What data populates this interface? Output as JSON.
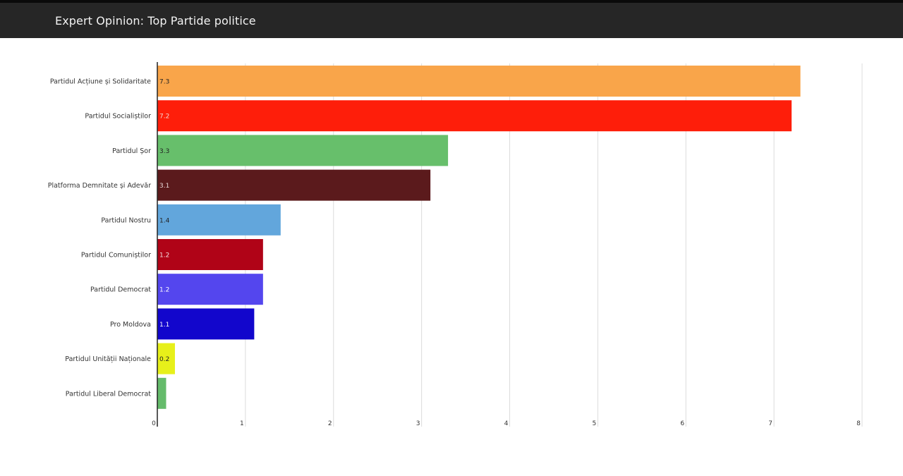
{
  "header": {
    "title": "Expert Opinion: Top Partide politice"
  },
  "chart_data": {
    "type": "bar",
    "orientation": "horizontal",
    "title": "Expert Opinion: Top Partide politice",
    "xlim": [
      0,
      8
    ],
    "x_ticks": [
      "0",
      "1",
      "2",
      "3",
      "4",
      "5",
      "6",
      "7",
      "8"
    ],
    "grid": true,
    "legend": "none",
    "categories": [
      "Partidul Acțiune și Solidaritate",
      "Partidul Socialiștilor",
      "Partidul Șor",
      "Platforma Demnitate și Adevăr",
      "Partidul Nostru",
      "Partidul Comuniștilor",
      "Partidul Democrat",
      "Pro Moldova",
      "Partidul Unității Naționale",
      "Partidul Liberal Democrat"
    ],
    "values": [
      7.3,
      7.2,
      3.3,
      3.1,
      1.4,
      1.2,
      1.2,
      1.1,
      0.2,
      0.1
    ],
    "value_labels": [
      "7.3",
      "7.2",
      "3.3",
      "3.1",
      "1.4",
      "1.2",
      "1.2",
      "1.1",
      "0.2",
      ""
    ],
    "colors": [
      "#f9a54a",
      "#fe1e0a",
      "#67bf6b",
      "#5b1a1c",
      "#62a6dc",
      "#b00317",
      "#5446ee",
      "#1206cc",
      "#e7f01a",
      "#65bb6b"
    ],
    "label_colors": [
      "#222222",
      "#f5d5d0",
      "#222222",
      "#e8d8d8",
      "#222222",
      "#f5e0e0",
      "#ffffff",
      "#ffffff",
      "#222222",
      "#222222"
    ]
  }
}
